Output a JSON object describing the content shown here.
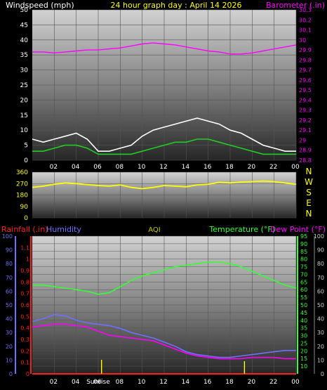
{
  "header": {
    "left_title": "Windspeed (mph)",
    "center_title": "24 hour graph day : April 14 2026",
    "right_title": "Barometer (.in)"
  },
  "colors": {
    "background": "#000000",
    "panel_top": "#cfcfcf",
    "panel_bottom": "#2a2a2a",
    "wind": "#ffffff",
    "gust_avg": "#22cc22",
    "barometer": "#ff00ff",
    "direction": "#ffff00",
    "rainfall": "#ff2020",
    "humidity": "#7070ff",
    "temperature": "#33ff33",
    "dew_point": "#ff00ff",
    "aqi": "#c8c800",
    "sunrise_marker": "#ffff00"
  },
  "x_ticks": [
    "02",
    "04",
    "06",
    "08",
    "10",
    "12",
    "14",
    "16",
    "18",
    "20",
    "22",
    "00"
  ],
  "chart_data": [
    {
      "type": "line",
      "ylabel": "Windspeed (mph)",
      "y2label": "Barometer (.in)",
      "ylim": [
        0,
        50
      ],
      "y2lim": [
        28.8,
        30.3
      ],
      "y_ticks": [
        "0",
        "5",
        "10",
        "15",
        "20",
        "25",
        "30",
        "35",
        "40",
        "45",
        "50"
      ],
      "y2_ticks": [
        "28.8",
        "28.9",
        "29",
        "29.1",
        "29.2",
        "29.3",
        "29.4",
        "29.5",
        "29.6",
        "29.7",
        "29.8",
        "29.9",
        "30",
        "30.1",
        "30.2",
        "30.3"
      ],
      "x_hours": [
        0,
        1,
        2,
        3,
        4,
        5,
        6,
        7,
        8,
        9,
        10,
        11,
        12,
        13,
        14,
        15,
        16,
        17,
        18,
        19,
        20,
        21,
        22,
        23,
        24
      ],
      "series": [
        {
          "values": [
            7,
            6,
            7,
            8,
            9,
            7,
            3,
            3,
            4,
            5,
            8,
            10,
            11,
            12,
            13,
            14,
            13,
            12,
            10,
            9,
            7,
            5,
            4,
            3,
            3
          ]
        },
        {
          "values": [
            3,
            3,
            4,
            5,
            5,
            4,
            2,
            2,
            2,
            2,
            3,
            4,
            5,
            6,
            6,
            7,
            7,
            6,
            5,
            4,
            3,
            2,
            2,
            2,
            2
          ]
        },
        {
          "values": [
            29.88,
            29.88,
            29.87,
            29.88,
            29.89,
            29.9,
            29.9,
            29.91,
            29.92,
            29.94,
            29.96,
            29.97,
            29.96,
            29.95,
            29.93,
            29.91,
            29.89,
            29.88,
            29.86,
            29.86,
            29.87,
            29.89,
            29.91,
            29.93,
            29.95
          ]
        }
      ]
    },
    {
      "type": "line",
      "ylabel": "N W S E N",
      "ylim": [
        0,
        360
      ],
      "y_ticks": [
        "0",
        "90",
        "180",
        "270",
        "360"
      ],
      "compass_labels": [
        "N",
        "W",
        "S",
        "E",
        "N"
      ],
      "x_hours": [
        0,
        1,
        2,
        3,
        4,
        5,
        6,
        7,
        8,
        9,
        10,
        11,
        12,
        13,
        14,
        15,
        16,
        17,
        18,
        19,
        20,
        21,
        22,
        23,
        24
      ],
      "series": [
        {
          "values": [
            240,
            250,
            265,
            275,
            270,
            262,
            255,
            250,
            260,
            240,
            230,
            240,
            255,
            250,
            245,
            260,
            265,
            280,
            275,
            282,
            285,
            290,
            285,
            275,
            265
          ]
        }
      ]
    },
    {
      "type": "line",
      "y_left_label": "Rainfall (.in)",
      "y_left2_label": "Humidity",
      "center_label": "AQI",
      "y_right_label": "Temperature (°F)",
      "y_right2_label": "Dew Point (°F)",
      "rain_ticks": [
        "0",
        "0.1",
        "0.2",
        "0.3",
        "0.4",
        "0.5",
        "0.6",
        "0.7",
        "0.8",
        "0.9",
        "1",
        "1.1"
      ],
      "humidity_ticks": [
        "0",
        "10",
        "20",
        "30",
        "40",
        "50",
        "60",
        "70",
        "80",
        "90",
        "100"
      ],
      "temp_ticks": [
        "10",
        "15",
        "20",
        "25",
        "30",
        "35",
        "40",
        "45",
        "50",
        "55",
        "60",
        "65",
        "70",
        "75",
        "80",
        "85",
        "90",
        "95"
      ],
      "outer_ticks": [
        "0",
        "10",
        "20",
        "30",
        "40",
        "50",
        "60",
        "70",
        "80",
        "90",
        "100"
      ],
      "sunrise_label": "Sunrise",
      "x_hours": [
        0,
        1,
        2,
        3,
        4,
        5,
        6,
        7,
        8,
        9,
        10,
        11,
        12,
        13,
        14,
        15,
        16,
        17,
        18,
        19,
        20,
        21,
        22,
        23,
        24
      ],
      "series": [
        {
          "values": [
            63,
            63,
            62,
            61,
            60,
            59,
            57,
            58,
            62,
            66,
            69,
            71,
            73,
            75,
            76,
            77,
            78,
            78,
            77,
            75,
            72,
            69,
            66,
            63,
            61
          ]
        },
        {
          "values": [
            38,
            40,
            43,
            42,
            39,
            37,
            36,
            35,
            33,
            30,
            28,
            26,
            23,
            20,
            16,
            14,
            13,
            12,
            12,
            13,
            14,
            15,
            16,
            17,
            17
          ]
        },
        {
          "values": [
            34,
            35,
            36,
            36,
            35,
            34,
            31,
            28,
            27,
            26,
            25,
            24,
            21,
            18,
            15,
            13,
            12,
            11,
            11,
            11,
            12,
            12,
            12,
            11,
            11
          ]
        },
        {
          "values": [
            0,
            0,
            0,
            0,
            0,
            0,
            0,
            0,
            0,
            0,
            0,
            0,
            0,
            0,
            0,
            0,
            0,
            0,
            0,
            0,
            0,
            0,
            0,
            0,
            0
          ]
        }
      ]
    }
  ]
}
